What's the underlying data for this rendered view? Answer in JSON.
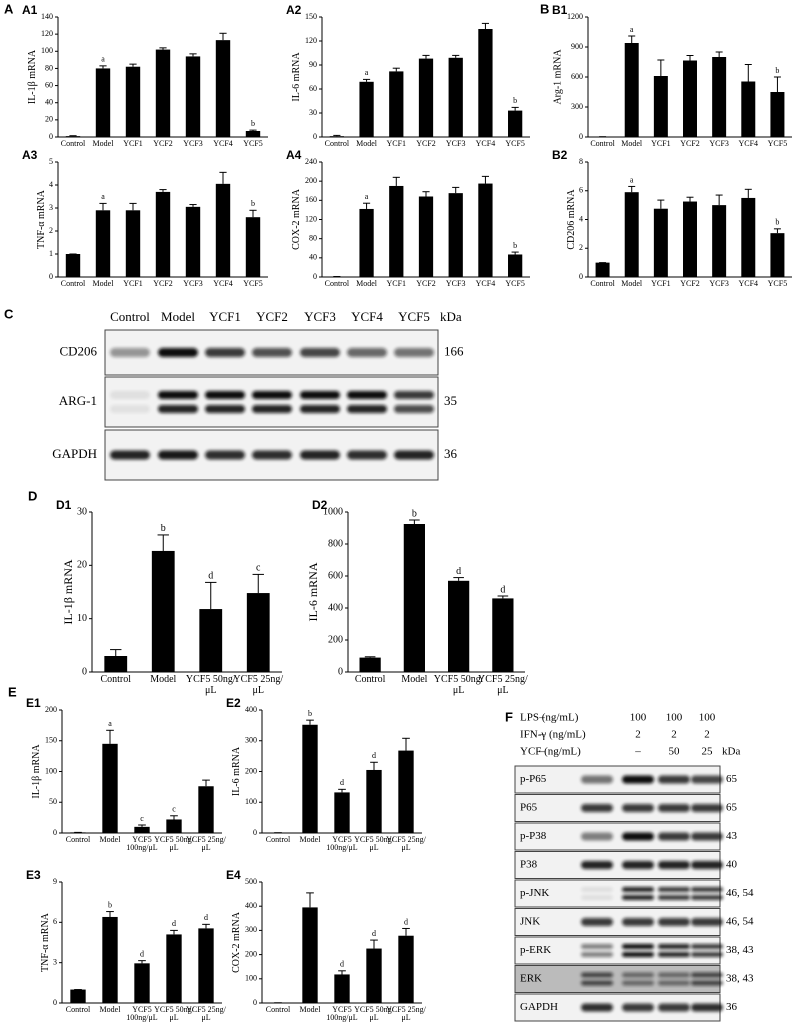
{
  "sections": [
    "A",
    "B",
    "C",
    "D",
    "E",
    "F"
  ],
  "chart_data": [
    {
      "type": "bar",
      "panel": "A1",
      "ylabel": "IL-1β mRNA",
      "categories": [
        "Control",
        "Model",
        "YCF1",
        "YCF2",
        "YCF3",
        "YCF4",
        "YCF5"
      ],
      "values": [
        1,
        80,
        82,
        102,
        94,
        113,
        7
      ],
      "errors": [
        0.5,
        3,
        3,
        2,
        3,
        8,
        1
      ],
      "annotations": [
        null,
        "a",
        null,
        null,
        null,
        null,
        "b"
      ],
      "ylim": [
        0,
        140
      ],
      "yticks": [
        0,
        20,
        40,
        60,
        80,
        100,
        120,
        140
      ],
      "color": "#000000"
    },
    {
      "type": "bar",
      "panel": "A2",
      "ylabel": "IL-6 mRNA",
      "categories": [
        "Control",
        "Model",
        "YCF1",
        "YCF2",
        "YCF3",
        "YCF4",
        "YCF5"
      ],
      "values": [
        1,
        69,
        82,
        98,
        99,
        135,
        33
      ],
      "errors": [
        1,
        3,
        4,
        4,
        3,
        7,
        4
      ],
      "annotations": [
        null,
        "a",
        null,
        null,
        null,
        null,
        "b"
      ],
      "ylim": [
        0,
        150
      ],
      "yticks": [
        0,
        30,
        60,
        90,
        120,
        150
      ],
      "color": "#000000"
    },
    {
      "type": "bar",
      "panel": "B1",
      "ylabel": "Arg-1 mRNA",
      "categories": [
        "Control",
        "Model",
        "YCF1",
        "YCF2",
        "YCF3",
        "YCF4",
        "YCF5"
      ],
      "values": [
        2,
        940,
        610,
        765,
        800,
        555,
        450
      ],
      "errors": [
        1,
        70,
        160,
        50,
        50,
        170,
        150
      ],
      "annotations": [
        null,
        "a",
        null,
        null,
        null,
        null,
        "b"
      ],
      "ylim": [
        0,
        1200
      ],
      "yticks": [
        0,
        300,
        600,
        900,
        1200
      ],
      "color": "#000000"
    },
    {
      "type": "bar",
      "panel": "A3",
      "ylabel": "TNF-α mRNA",
      "categories": [
        "Control",
        "Model",
        "YCF1",
        "YCF2",
        "YCF3",
        "YCF4",
        "YCF5"
      ],
      "values": [
        1,
        2.9,
        2.9,
        3.7,
        3.05,
        4.05,
        2.6
      ],
      "errors": [
        0,
        0.3,
        0.3,
        0.1,
        0.1,
        0.5,
        0.3
      ],
      "annotations": [
        null,
        "a",
        null,
        null,
        null,
        null,
        "b"
      ],
      "ylim": [
        0,
        5
      ],
      "yticks": [
        0,
        1,
        2,
        3,
        4,
        5
      ],
      "color": "#000000"
    },
    {
      "type": "bar",
      "panel": "A4",
      "ylabel": "COX-2 mRNA",
      "categories": [
        "Control",
        "Model",
        "YCF1",
        "YCF2",
        "YCF3",
        "YCF4",
        "YCF5"
      ],
      "values": [
        1,
        142,
        190,
        168,
        175,
        195,
        47
      ],
      "errors": [
        0,
        12,
        18,
        10,
        12,
        15,
        5
      ],
      "annotations": [
        null,
        "a",
        null,
        null,
        null,
        null,
        "b"
      ],
      "ylim": [
        0,
        240
      ],
      "yticks": [
        0,
        40,
        80,
        120,
        160,
        200,
        240
      ],
      "color": "#000000"
    },
    {
      "type": "bar",
      "panel": "B2",
      "ylabel": "CD206 mRNA",
      "categories": [
        "Control",
        "Model",
        "YCF1",
        "YCF2",
        "YCF3",
        "YCF4",
        "YCF5"
      ],
      "values": [
        1,
        5.9,
        4.75,
        5.25,
        5,
        5.5,
        3.05
      ],
      "errors": [
        0,
        0.4,
        0.6,
        0.3,
        0.7,
        0.6,
        0.3
      ],
      "annotations": [
        null,
        "a",
        null,
        null,
        null,
        null,
        "b"
      ],
      "ylim": [
        0,
        8
      ],
      "yticks": [
        0,
        2,
        4,
        6,
        8
      ],
      "color": "#000000"
    },
    {
      "type": "bar",
      "panel": "D1",
      "ylabel": "IL-1β mRNA",
      "categories": [
        "Control",
        "Model",
        "YCF5 50ng/μL",
        "YCF5 25ng/μL"
      ],
      "values": [
        3,
        22.7,
        11.8,
        14.8
      ],
      "errors": [
        1.2,
        3,
        5,
        3.5
      ],
      "annotations": [
        null,
        "b",
        "d",
        "c"
      ],
      "ylim": [
        0,
        30
      ],
      "yticks": [
        0,
        10,
        20,
        30
      ],
      "color": "#000000"
    },
    {
      "type": "bar",
      "panel": "D2",
      "ylabel": "IL-6 mRNA",
      "categories": [
        "Control",
        "Model",
        "YCF5 50ng/μL",
        "YCF5 25ng/μL"
      ],
      "values": [
        90,
        925,
        570,
        460
      ],
      "errors": [
        5,
        25,
        20,
        15
      ],
      "annotations": [
        null,
        "b",
        "d",
        "d"
      ],
      "ylim": [
        0,
        1000
      ],
      "yticks": [
        0,
        200,
        400,
        600,
        800,
        1000
      ],
      "color": "#000000"
    },
    {
      "type": "bar",
      "panel": "E1",
      "ylabel": "IL-1β mRNA",
      "categories": [
        "Control",
        "Model",
        "YCF5 100ng/μL",
        "YCF5 50ng/μL",
        "YCF5 25ng/μL"
      ],
      "values": [
        1,
        145,
        10,
        22,
        76
      ],
      "errors": [
        0,
        22,
        3,
        6,
        10
      ],
      "annotations": [
        null,
        "a",
        "c",
        "c",
        null
      ],
      "ylim": [
        0,
        200
      ],
      "yticks": [
        0,
        50,
        100,
        150,
        200
      ],
      "color": "#000000"
    },
    {
      "type": "bar",
      "panel": "E2",
      "ylabel": "IL-6 mRNA",
      "categories": [
        "Control",
        "Model",
        "YCF5 100ng/μL",
        "YCF5 50ng/μL",
        "YCF5 25ng/μL"
      ],
      "values": [
        1,
        352,
        132,
        205,
        268
      ],
      "errors": [
        0,
        15,
        10,
        25,
        40
      ],
      "annotations": [
        null,
        "b",
        "d",
        "d",
        null
      ],
      "ylim": [
        0,
        400
      ],
      "yticks": [
        0,
        100,
        200,
        300,
        400
      ],
      "color": "#000000"
    },
    {
      "type": "bar",
      "panel": "E3",
      "ylabel": "TNF-α mRNA",
      "categories": [
        "Control",
        "Model",
        "YCF5 100ng/μL",
        "YCF5 50ng/μL",
        "YCF5 25ng/μL"
      ],
      "values": [
        1,
        6.4,
        2.95,
        5.1,
        5.55
      ],
      "errors": [
        0,
        0.4,
        0.2,
        0.3,
        0.3
      ],
      "annotations": [
        null,
        "b",
        "d",
        "d",
        "d"
      ],
      "ylim": [
        0,
        9
      ],
      "yticks": [
        0,
        3,
        6,
        9
      ],
      "color": "#000000"
    },
    {
      "type": "bar",
      "panel": "E4",
      "ylabel": "COX-2 mRNA",
      "categories": [
        "Control",
        "Model",
        "YCF5 100ng/μL",
        "YCF5 50ng/μL",
        "YCF5 25ng/μL"
      ],
      "values": [
        1,
        395,
        118,
        225,
        278
      ],
      "errors": [
        0,
        60,
        15,
        35,
        30
      ],
      "annotations": [
        null,
        null,
        "d",
        "d",
        "d"
      ],
      "ylim": [
        0,
        500
      ],
      "yticks": [
        0,
        100,
        200,
        300,
        400,
        500
      ],
      "color": "#000000"
    }
  ],
  "blot_c": {
    "lanes": [
      "Control",
      "Model",
      "YCF1",
      "YCF2",
      "YCF3",
      "YCF4",
      "YCF5"
    ],
    "unit": "kDa",
    "rows": [
      {
        "label": "CD206",
        "kda": "166"
      },
      {
        "label": "ARG-1",
        "kda": "35"
      },
      {
        "label": "GAPDH",
        "kda": "36"
      }
    ]
  },
  "blot_f": {
    "conditions": [
      {
        "label": "LPS (ng/mL)",
        "levels": [
          "–",
          "100",
          "100",
          "100"
        ]
      },
      {
        "label": "IFN-γ (ng/mL)",
        "levels": [
          "–",
          "2",
          "2",
          "2"
        ]
      },
      {
        "label": "YCF (ng/mL)",
        "levels": [
          "–",
          "–",
          "50",
          "25"
        ]
      }
    ],
    "unit": "kDa",
    "rows": [
      {
        "label": "p-P65",
        "kda": "65"
      },
      {
        "label": "P65",
        "kda": "65"
      },
      {
        "label": "p-P38",
        "kda": "43"
      },
      {
        "label": "P38",
        "kda": "40"
      },
      {
        "label": "p-JNK",
        "kda": "46, 54"
      },
      {
        "label": "JNK",
        "kda": "46, 54"
      },
      {
        "label": "p-ERK",
        "kda": "38, 43"
      },
      {
        "label": "ERK",
        "kda": "38, 43"
      },
      {
        "label": "GAPDH",
        "kda": "36"
      }
    ]
  }
}
